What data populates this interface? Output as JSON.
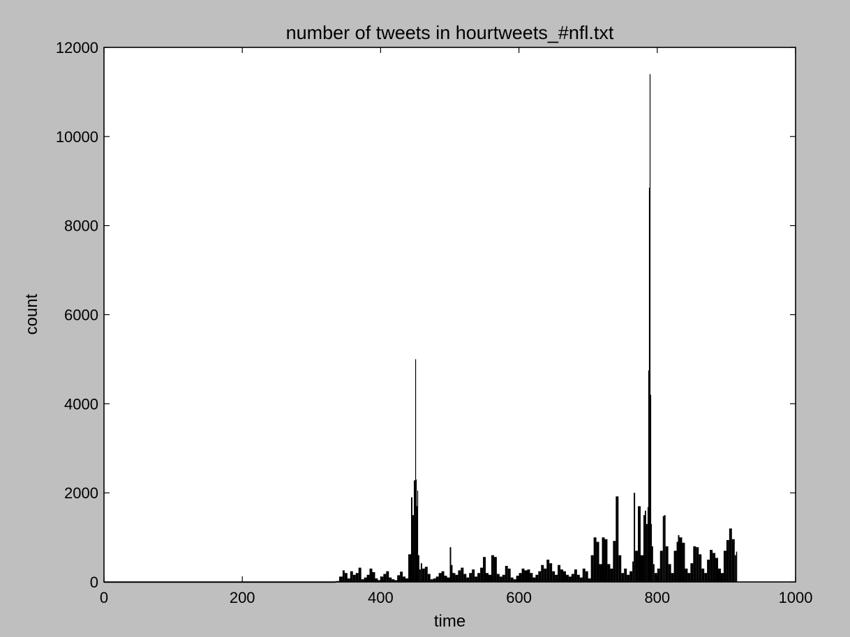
{
  "chart_data": {
    "type": "bar",
    "title": "number of tweets in hourtweets_#nfl.txt",
    "xlabel": "time",
    "ylabel": "count",
    "xlim": [
      0,
      1000
    ],
    "ylim": [
      0,
      12000
    ],
    "xticks": [
      "0",
      "200",
      "400",
      "600",
      "800",
      "1000"
    ],
    "yticks": [
      "0",
      "2000",
      "4000",
      "6000",
      "8000",
      "10000",
      "12000"
    ],
    "grid": false,
    "bar_color": "#000000",
    "background": "#ffffff",
    "x": [
      0,
      100,
      200,
      300,
      335,
      340,
      345,
      348,
      352,
      356,
      360,
      364,
      368,
      372,
      376,
      380,
      384,
      388,
      392,
      396,
      400,
      404,
      408,
      412,
      416,
      420,
      424,
      428,
      432,
      436,
      440,
      444,
      446,
      448,
      450,
      451,
      452,
      453,
      454,
      456,
      458,
      460,
      464,
      468,
      472,
      476,
      480,
      484,
      488,
      492,
      496,
      500,
      502,
      504,
      508,
      512,
      516,
      520,
      524,
      528,
      532,
      536,
      540,
      544,
      548,
      552,
      556,
      560,
      564,
      568,
      572,
      576,
      580,
      584,
      588,
      592,
      596,
      600,
      604,
      608,
      612,
      616,
      620,
      624,
      628,
      632,
      636,
      640,
      644,
      648,
      652,
      656,
      660,
      664,
      668,
      672,
      676,
      680,
      684,
      688,
      692,
      696,
      700,
      704,
      708,
      712,
      716,
      720,
      724,
      728,
      732,
      736,
      740,
      744,
      748,
      752,
      756,
      760,
      764,
      766,
      768,
      772,
      776,
      780,
      782,
      784,
      786,
      787,
      788,
      789,
      790,
      791,
      792,
      794,
      796,
      800,
      804,
      808,
      810,
      812,
      816,
      820,
      824,
      828,
      830,
      832,
      836,
      840,
      844,
      848,
      852,
      856,
      860,
      864,
      868,
      872,
      876,
      880,
      884,
      888,
      892,
      896,
      900,
      904,
      908,
      912,
      914
    ],
    "values": [
      0,
      0,
      0,
      0,
      20,
      120,
      260,
      200,
      80,
      240,
      160,
      200,
      320,
      60,
      100,
      160,
      300,
      220,
      80,
      40,
      120,
      180,
      240,
      100,
      60,
      40,
      150,
      230,
      120,
      80,
      620,
      1900,
      1500,
      2280,
      5000,
      2300,
      1700,
      2050,
      600,
      280,
      420,
      300,
      340,
      180,
      60,
      80,
      120,
      200,
      240,
      140,
      100,
      780,
      380,
      200,
      160,
      260,
      320,
      180,
      100,
      200,
      280,
      120,
      200,
      320,
      560,
      200,
      160,
      600,
      560,
      180,
      120,
      160,
      360,
      300,
      100,
      60,
      140,
      200,
      300,
      260,
      280,
      200,
      100,
      160,
      240,
      380,
      300,
      500,
      420,
      240,
      160,
      380,
      280,
      240,
      160,
      120,
      180,
      280,
      160,
      100,
      300,
      240,
      80,
      600,
      1000,
      900,
      400,
      1000,
      960,
      400,
      300,
      920,
      1920,
      600,
      200,
      300,
      160,
      240,
      460,
      2000,
      700,
      1700,
      600,
      1500,
      1600,
      1300,
      1680,
      4750,
      8850,
      11400,
      4200,
      1300,
      800,
      400,
      200,
      300,
      700,
      1480,
      1500,
      800,
      400,
      200,
      700,
      900,
      1050,
      1000,
      880,
      300,
      200,
      420,
      800,
      780,
      620,
      300,
      200,
      500,
      720,
      650,
      540,
      300,
      200,
      700,
      940,
      1200,
      960,
      600,
      680
    ]
  }
}
